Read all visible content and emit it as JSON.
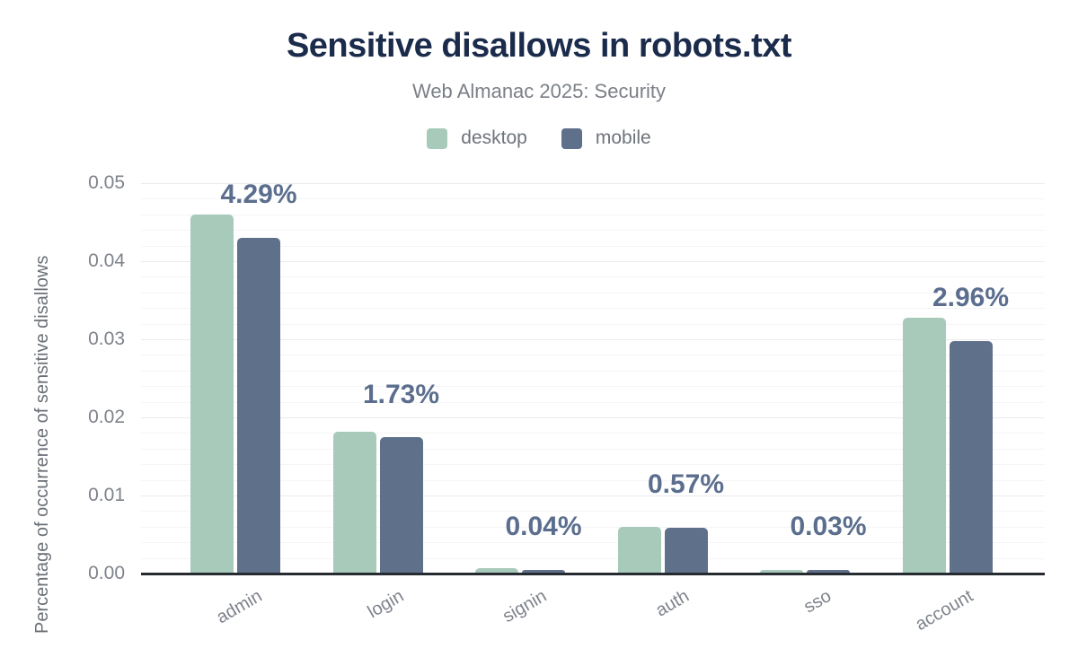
{
  "header": {
    "title": "Sensitive disallows in robots.txt",
    "subtitle": "Web Almanac 2025: Security"
  },
  "legend": [
    {
      "label": "desktop",
      "color": "#a8caba"
    },
    {
      "label": "mobile",
      "color": "#5f708b"
    }
  ],
  "colors": {
    "title": "#1b2b4b",
    "subtitle": "#7b8087",
    "legend_text": "#6e737a",
    "axis_line": "#262b31",
    "tick_text": "#7e838b",
    "y_title_text": "#6b7077",
    "annotation": "#5b6e8e",
    "grid_minor": "#f5f5f7",
    "grid_major": "#ebebee",
    "background": "#ffffff"
  },
  "chart_data": {
    "type": "bar",
    "title": "Sensitive disallows in robots.txt",
    "subtitle": "Web Almanac 2025: Security",
    "categories": [
      "admin",
      "login",
      "signin",
      "auth",
      "sso",
      "account"
    ],
    "series": [
      {
        "name": "desktop",
        "color": "#a8caba",
        "values": [
          0.0459,
          0.0181,
          0.0006,
          0.0059,
          0.0004,
          0.0326
        ]
      },
      {
        "name": "mobile",
        "color": "#5f708b",
        "values": [
          0.0429,
          0.0173,
          0.0004,
          0.0057,
          0.0003,
          0.0296
        ]
      }
    ],
    "annotations": [
      "4.29%",
      "1.73%",
      "0.04%",
      "0.57%",
      "0.03%",
      "2.96%"
    ],
    "annotation_series": "mobile",
    "xlabel": "",
    "ylabel": "Percentage of occurrence of sensitive disallows",
    "ylim": [
      0,
      0.05
    ],
    "yticks": [
      "0.00",
      "0.01",
      "0.02",
      "0.03",
      "0.04",
      "0.05"
    ],
    "ytick_values": [
      0,
      0.01,
      0.02,
      0.03,
      0.04,
      0.05
    ],
    "grid_minor_step": 0.002,
    "grid_major_step": 0.01,
    "grid": true,
    "legend_position": "top"
  }
}
